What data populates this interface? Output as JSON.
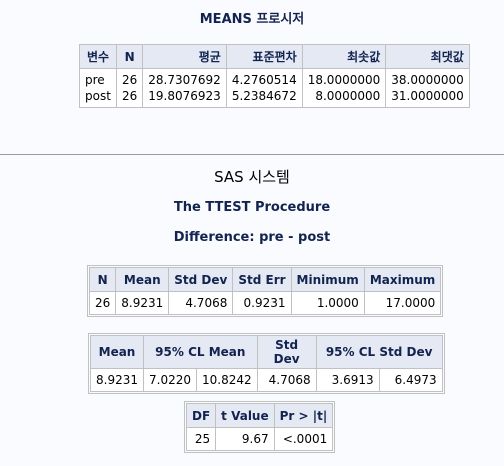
{
  "means": {
    "title": "MEANS 프로시저",
    "headers": [
      "변수",
      "N",
      "평균",
      "표준편차",
      "최솟값",
      "최댓값"
    ],
    "rows": [
      [
        "pre",
        "26",
        "28.7307692",
        "4.2760514",
        "18.0000000",
        "38.0000000"
      ],
      [
        "post",
        "26",
        "19.8076923",
        "5.2384672",
        "8.0000000",
        "31.0000000"
      ]
    ]
  },
  "ttest": {
    "system_title": "SAS 시스템",
    "proc_title": "The TTEST Procedure",
    "diff_title": "Difference: pre - post",
    "stats": {
      "headers": [
        "N",
        "Mean",
        "Std Dev",
        "Std Err",
        "Minimum",
        "Maximum"
      ],
      "row": [
        "26",
        "8.9231",
        "4.7068",
        "0.9231",
        "1.0000",
        "17.0000"
      ]
    },
    "cl": {
      "headers": [
        "Mean",
        "95% CL Mean",
        "Std Dev",
        "95% CL Std Dev"
      ],
      "row": [
        "8.9231",
        "7.0220",
        "10.8242",
        "4.7068",
        "3.6913",
        "6.4973"
      ]
    },
    "test": {
      "headers": [
        "DF",
        "t Value",
        "Pr > |t|"
      ],
      "row": [
        "25",
        "9.67",
        "<.0001"
      ]
    }
  }
}
